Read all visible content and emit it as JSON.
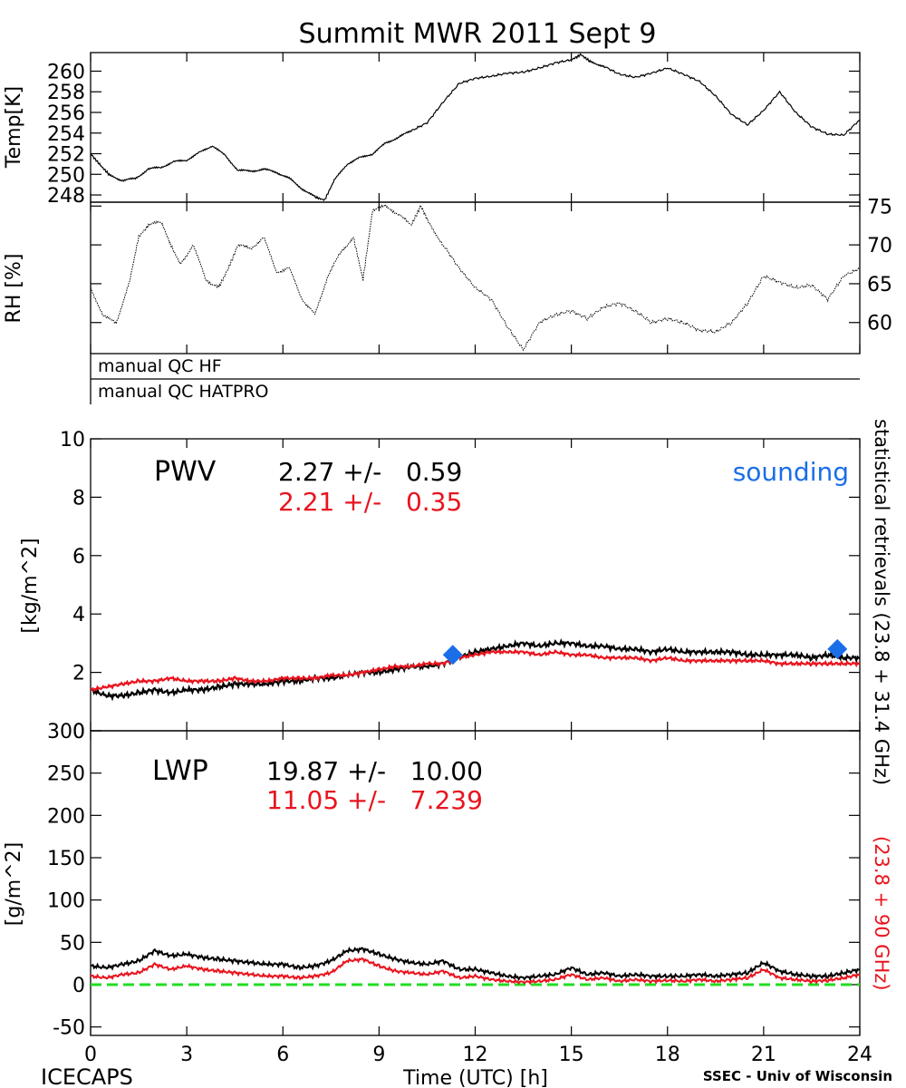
{
  "chart_data": {
    "title": "Summit MWR 2011 Sept   9",
    "xlabel": "Time (UTC) [h]",
    "x_ticks": [
      "0",
      "3",
      "6",
      "9",
      "12",
      "15",
      "18",
      "21",
      "24"
    ],
    "xlim": [
      0,
      24
    ],
    "footer": {
      "left": "ICECAPS",
      "right": "SSEC - Univ of Wisconsin"
    },
    "side_label": {
      "black": "statistical retrievals (23.8 + 31.4 GHz)",
      "red": "(23.8 + 90 GHz)"
    },
    "colors": {
      "series_black": "#000000",
      "series_red": "#e8141e",
      "sounding": "#1a6ee8",
      "zero_line": "#22dd22"
    },
    "temp": {
      "type": "line",
      "ylabel": "Temp[K]",
      "ylim": [
        247.3,
        261.8
      ],
      "y_ticks": [
        "248",
        "250",
        "252",
        "254",
        "256",
        "258",
        "260"
      ],
      "x": [
        0,
        0.3,
        0.6,
        1.0,
        1.4,
        1.8,
        2.2,
        2.6,
        3.0,
        3.4,
        3.8,
        4.2,
        4.6,
        5.0,
        5.4,
        5.8,
        6.2,
        6.6,
        7.0,
        7.3,
        7.6,
        8.0,
        8.4,
        8.8,
        9.2,
        9.6,
        10.0,
        10.5,
        11.0,
        11.5,
        12.0,
        12.5,
        13.0,
        13.5,
        14.0,
        14.5,
        15.0,
        15.3,
        15.6,
        16.0,
        16.5,
        17.0,
        17.5,
        18.0,
        18.5,
        19.0,
        19.5,
        20.0,
        20.5,
        21.0,
        21.5,
        22.0,
        22.5,
        23.0,
        23.5,
        24.0
      ],
      "y": [
        252.0,
        250.9,
        249.9,
        249.4,
        249.6,
        250.5,
        250.7,
        251.2,
        251.4,
        252.1,
        252.8,
        251.8,
        250.4,
        250.3,
        250.5,
        250.2,
        249.6,
        248.6,
        247.8,
        247.5,
        249.4,
        251.0,
        251.6,
        252.0,
        253.0,
        253.6,
        254.2,
        255.0,
        257.0,
        258.8,
        259.3,
        259.5,
        259.8,
        259.9,
        260.3,
        260.8,
        261.1,
        261.6,
        260.9,
        260.5,
        259.7,
        259.4,
        259.8,
        260.3,
        259.7,
        259.0,
        257.6,
        255.8,
        254.8,
        256.2,
        258.0,
        256.0,
        254.6,
        253.9,
        253.8,
        255.3
      ]
    },
    "rh": {
      "type": "line",
      "ylabel": "RH [%]",
      "ylim": [
        56,
        75.5
      ],
      "y_ticks": [
        "60",
        "65",
        "70",
        "75"
      ],
      "x": [
        0,
        0.4,
        0.8,
        1.2,
        1.5,
        1.8,
        2.2,
        2.5,
        2.8,
        3.2,
        3.6,
        4.0,
        4.3,
        4.6,
        5.0,
        5.4,
        5.8,
        6.2,
        6.6,
        7.0,
        7.4,
        7.8,
        8.2,
        8.5,
        8.8,
        9.2,
        9.6,
        10.0,
        10.3,
        10.6,
        11.0,
        11.5,
        12.0,
        12.5,
        13.0,
        13.5,
        14.0,
        14.5,
        15.0,
        15.5,
        16.0,
        16.5,
        17.0,
        17.5,
        18.0,
        18.5,
        19.0,
        19.5,
        20.0,
        20.5,
        21.0,
        21.5,
        22.0,
        22.5,
        23.0,
        23.5,
        24.0
      ],
      "y": [
        64.5,
        60.8,
        60.0,
        65.0,
        71.0,
        72.5,
        73.0,
        70.0,
        67.5,
        70.0,
        65.5,
        64.5,
        67.0,
        70.0,
        69.5,
        71.0,
        66.5,
        67.0,
        63.0,
        61.0,
        66.0,
        69.0,
        71.0,
        65.5,
        74.5,
        75.0,
        74.0,
        72.5,
        75.0,
        72.5,
        70.0,
        67.0,
        64.5,
        63.0,
        59.5,
        56.5,
        60.0,
        61.0,
        61.5,
        60.5,
        62.0,
        62.5,
        61.5,
        60.0,
        60.5,
        60.0,
        59.0,
        58.8,
        60.0,
        62.5,
        66.0,
        65.2,
        64.5,
        64.8,
        63.0,
        66.0,
        67.0
      ]
    },
    "qc": {
      "hf": "manual QC HF",
      "hatpro": "manual QC HATPRO"
    },
    "pwv": {
      "type": "line",
      "label": "PWV",
      "ylabel": "[kg/m^2]",
      "ylim": [
        0,
        10
      ],
      "y_ticks": [
        "0",
        "2",
        "4",
        "6",
        "8",
        "10"
      ],
      "stats": {
        "black": "2.27 +/-   0.59",
        "red": "2.21 +/-   0.35"
      },
      "sounding_label": "sounding",
      "sounding": {
        "x": [
          11.3,
          23.3
        ],
        "y": [
          2.6,
          2.8
        ]
      },
      "x": [
        0,
        0.5,
        1.0,
        1.5,
        2.0,
        2.5,
        3.0,
        3.5,
        4.0,
        4.5,
        5.0,
        5.5,
        6.0,
        6.5,
        7.0,
        7.5,
        8.0,
        8.5,
        9.0,
        9.5,
        10.0,
        10.5,
        11.0,
        11.5,
        12.0,
        12.5,
        13.0,
        13.5,
        14.0,
        14.5,
        15.0,
        15.5,
        16.0,
        16.5,
        17.0,
        17.5,
        18.0,
        18.5,
        19.0,
        19.5,
        20.0,
        20.5,
        21.0,
        21.5,
        22.0,
        22.5,
        23.0,
        23.5,
        24.0
      ],
      "series": [
        {
          "values": [
            1.4,
            1.2,
            1.2,
            1.3,
            1.4,
            1.3,
            1.4,
            1.4,
            1.5,
            1.6,
            1.6,
            1.6,
            1.7,
            1.7,
            1.8,
            1.8,
            1.9,
            2.0,
            2.0,
            2.1,
            2.2,
            2.2,
            2.3,
            2.5,
            2.7,
            2.8,
            2.9,
            3.0,
            2.9,
            3.0,
            3.0,
            2.9,
            2.9,
            2.8,
            2.8,
            2.7,
            2.8,
            2.7,
            2.7,
            2.7,
            2.7,
            2.6,
            2.6,
            2.6,
            2.6,
            2.5,
            2.6,
            2.5,
            2.5
          ]
        },
        {
          "values": [
            1.4,
            1.5,
            1.6,
            1.7,
            1.7,
            1.8,
            1.7,
            1.7,
            1.7,
            1.8,
            1.7,
            1.7,
            1.8,
            1.8,
            1.8,
            1.9,
            1.9,
            2.0,
            2.1,
            2.2,
            2.2,
            2.3,
            2.3,
            2.5,
            2.6,
            2.7,
            2.7,
            2.7,
            2.6,
            2.7,
            2.6,
            2.6,
            2.5,
            2.5,
            2.5,
            2.4,
            2.5,
            2.4,
            2.4,
            2.4,
            2.4,
            2.4,
            2.4,
            2.3,
            2.3,
            2.3,
            2.3,
            2.3,
            2.3
          ]
        }
      ]
    },
    "lwp": {
      "type": "line",
      "label": "LWP",
      "ylabel": "[g/m^2]",
      "ylim": [
        -60,
        300
      ],
      "y_ticks": [
        "-50",
        "0",
        "50",
        "100",
        "150",
        "200",
        "250",
        "300"
      ],
      "stats": {
        "black": "19.87 +/-   10.00",
        "red": "11.05 +/-   7.239"
      },
      "x": [
        0,
        0.5,
        1.0,
        1.5,
        2.0,
        2.5,
        3.0,
        3.5,
        4.0,
        4.5,
        5.0,
        5.5,
        6.0,
        6.5,
        7.0,
        7.5,
        8.0,
        8.5,
        9.0,
        9.5,
        10.0,
        10.5,
        11.0,
        11.5,
        12.0,
        12.5,
        13.0,
        13.5,
        14.0,
        14.5,
        15.0,
        15.5,
        16.0,
        16.5,
        17.0,
        17.5,
        18.0,
        18.5,
        19.0,
        19.5,
        20.0,
        20.5,
        21.0,
        21.5,
        22.0,
        22.5,
        23.0,
        23.5,
        24.0
      ],
      "series": [
        {
          "values": [
            22,
            20,
            24,
            28,
            40,
            34,
            36,
            32,
            30,
            28,
            26,
            24,
            24,
            20,
            22,
            28,
            40,
            42,
            36,
            30,
            26,
            24,
            28,
            18,
            18,
            14,
            10,
            8,
            10,
            12,
            20,
            12,
            14,
            10,
            12,
            10,
            10,
            10,
            12,
            10,
            12,
            14,
            26,
            16,
            12,
            10,
            10,
            14,
            18
          ]
        },
        {
          "values": [
            10,
            8,
            12,
            14,
            24,
            18,
            22,
            18,
            16,
            14,
            12,
            10,
            10,
            8,
            10,
            14,
            28,
            30,
            22,
            16,
            14,
            12,
            16,
            8,
            10,
            6,
            4,
            3,
            4,
            6,
            12,
            6,
            8,
            4,
            6,
            4,
            5,
            4,
            6,
            4,
            6,
            8,
            18,
            8,
            6,
            4,
            5,
            8,
            12
          ]
        }
      ]
    }
  }
}
